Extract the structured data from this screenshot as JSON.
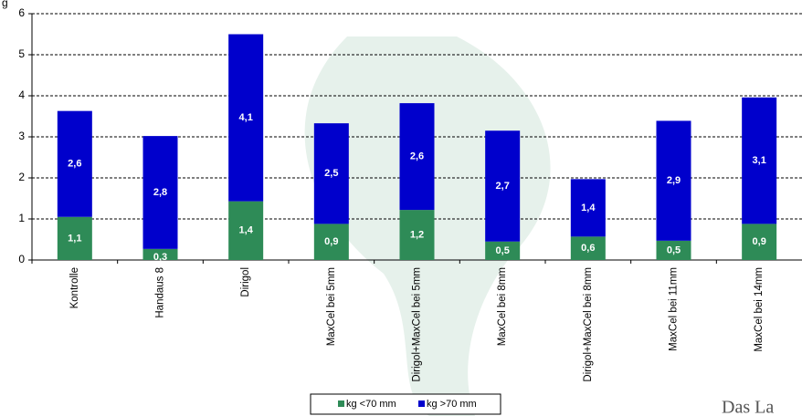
{
  "chart_data": {
    "type": "stacked_bar",
    "y_label": "g",
    "categories": [
      "Kontrolle",
      "Handaus 8",
      "Dirigol",
      "MaxCel bei 5mm",
      "Dirigol+MaxCel bei 5mm",
      "MaxCel bei 8mm",
      "Dirigol+MaxCel bei 8mm",
      "MaxCel bei 11mm",
      "MaxCel bei 14mm"
    ],
    "series": [
      {
        "name": "kg <70 mm",
        "color": "#2e8b57",
        "values": [
          1.05,
          0.27,
          1.43,
          0.88,
          1.22,
          0.45,
          0.57,
          0.47,
          0.88
        ],
        "value_labels": [
          "1,1",
          "0,3",
          "1,4",
          "0,9",
          "1,2",
          "0,5",
          "0,6",
          "0,5",
          "0,9"
        ]
      },
      {
        "name": "kg >70 mm",
        "color": "#0000cc",
        "values": [
          2.58,
          2.75,
          4.07,
          2.45,
          2.6,
          2.7,
          1.4,
          2.92,
          3.08
        ],
        "value_labels": [
          "2,6",
          "2,8",
          "4,1",
          "2,5",
          "2,6",
          "2,7",
          "1,4",
          "2,9",
          "3,1"
        ]
      }
    ],
    "ylim": [
      0,
      6
    ],
    "yticks": [
      0,
      1,
      2,
      3,
      4,
      5,
      6
    ],
    "grid": true,
    "logo_text": "Das La"
  }
}
